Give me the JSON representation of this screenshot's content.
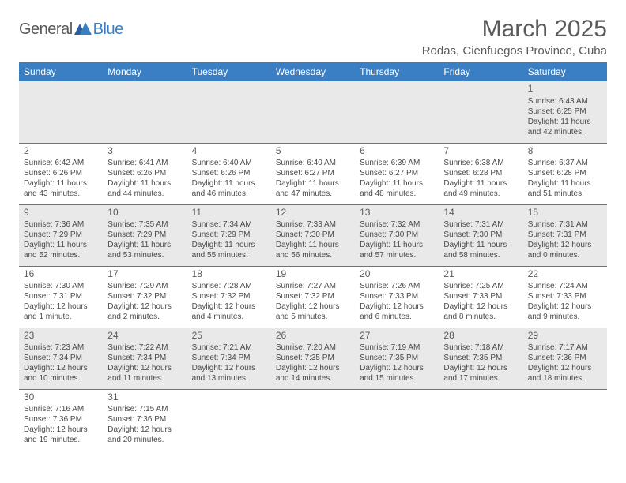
{
  "logo": {
    "text1": "General",
    "text2": "Blue"
  },
  "title": "March 2025",
  "location": "Rodas, Cienfuegos Province, Cuba",
  "headers": [
    "Sunday",
    "Monday",
    "Tuesday",
    "Wednesday",
    "Thursday",
    "Friday",
    "Saturday"
  ],
  "colors": {
    "header_bg": "#3a7fc4",
    "header_text": "#ffffff",
    "row_shade": "#e9e9e9",
    "text": "#4a4a4a",
    "border": "#3a7fc4",
    "logo_blue": "#3a7fc4"
  },
  "weeks": [
    [
      null,
      null,
      null,
      null,
      null,
      null,
      {
        "n": "1",
        "sr": "Sunrise: 6:43 AM",
        "ss": "Sunset: 6:25 PM",
        "d1": "Daylight: 11 hours",
        "d2": "and 42 minutes."
      }
    ],
    [
      {
        "n": "2",
        "sr": "Sunrise: 6:42 AM",
        "ss": "Sunset: 6:26 PM",
        "d1": "Daylight: 11 hours",
        "d2": "and 43 minutes."
      },
      {
        "n": "3",
        "sr": "Sunrise: 6:41 AM",
        "ss": "Sunset: 6:26 PM",
        "d1": "Daylight: 11 hours",
        "d2": "and 44 minutes."
      },
      {
        "n": "4",
        "sr": "Sunrise: 6:40 AM",
        "ss": "Sunset: 6:26 PM",
        "d1": "Daylight: 11 hours",
        "d2": "and 46 minutes."
      },
      {
        "n": "5",
        "sr": "Sunrise: 6:40 AM",
        "ss": "Sunset: 6:27 PM",
        "d1": "Daylight: 11 hours",
        "d2": "and 47 minutes."
      },
      {
        "n": "6",
        "sr": "Sunrise: 6:39 AM",
        "ss": "Sunset: 6:27 PM",
        "d1": "Daylight: 11 hours",
        "d2": "and 48 minutes."
      },
      {
        "n": "7",
        "sr": "Sunrise: 6:38 AM",
        "ss": "Sunset: 6:28 PM",
        "d1": "Daylight: 11 hours",
        "d2": "and 49 minutes."
      },
      {
        "n": "8",
        "sr": "Sunrise: 6:37 AM",
        "ss": "Sunset: 6:28 PM",
        "d1": "Daylight: 11 hours",
        "d2": "and 51 minutes."
      }
    ],
    [
      {
        "n": "9",
        "sr": "Sunrise: 7:36 AM",
        "ss": "Sunset: 7:29 PM",
        "d1": "Daylight: 11 hours",
        "d2": "and 52 minutes."
      },
      {
        "n": "10",
        "sr": "Sunrise: 7:35 AM",
        "ss": "Sunset: 7:29 PM",
        "d1": "Daylight: 11 hours",
        "d2": "and 53 minutes."
      },
      {
        "n": "11",
        "sr": "Sunrise: 7:34 AM",
        "ss": "Sunset: 7:29 PM",
        "d1": "Daylight: 11 hours",
        "d2": "and 55 minutes."
      },
      {
        "n": "12",
        "sr": "Sunrise: 7:33 AM",
        "ss": "Sunset: 7:30 PM",
        "d1": "Daylight: 11 hours",
        "d2": "and 56 minutes."
      },
      {
        "n": "13",
        "sr": "Sunrise: 7:32 AM",
        "ss": "Sunset: 7:30 PM",
        "d1": "Daylight: 11 hours",
        "d2": "and 57 minutes."
      },
      {
        "n": "14",
        "sr": "Sunrise: 7:31 AM",
        "ss": "Sunset: 7:30 PM",
        "d1": "Daylight: 11 hours",
        "d2": "and 58 minutes."
      },
      {
        "n": "15",
        "sr": "Sunrise: 7:31 AM",
        "ss": "Sunset: 7:31 PM",
        "d1": "Daylight: 12 hours",
        "d2": "and 0 minutes."
      }
    ],
    [
      {
        "n": "16",
        "sr": "Sunrise: 7:30 AM",
        "ss": "Sunset: 7:31 PM",
        "d1": "Daylight: 12 hours",
        "d2": "and 1 minute."
      },
      {
        "n": "17",
        "sr": "Sunrise: 7:29 AM",
        "ss": "Sunset: 7:32 PM",
        "d1": "Daylight: 12 hours",
        "d2": "and 2 minutes."
      },
      {
        "n": "18",
        "sr": "Sunrise: 7:28 AM",
        "ss": "Sunset: 7:32 PM",
        "d1": "Daylight: 12 hours",
        "d2": "and 4 minutes."
      },
      {
        "n": "19",
        "sr": "Sunrise: 7:27 AM",
        "ss": "Sunset: 7:32 PM",
        "d1": "Daylight: 12 hours",
        "d2": "and 5 minutes."
      },
      {
        "n": "20",
        "sr": "Sunrise: 7:26 AM",
        "ss": "Sunset: 7:33 PM",
        "d1": "Daylight: 12 hours",
        "d2": "and 6 minutes."
      },
      {
        "n": "21",
        "sr": "Sunrise: 7:25 AM",
        "ss": "Sunset: 7:33 PM",
        "d1": "Daylight: 12 hours",
        "d2": "and 8 minutes."
      },
      {
        "n": "22",
        "sr": "Sunrise: 7:24 AM",
        "ss": "Sunset: 7:33 PM",
        "d1": "Daylight: 12 hours",
        "d2": "and 9 minutes."
      }
    ],
    [
      {
        "n": "23",
        "sr": "Sunrise: 7:23 AM",
        "ss": "Sunset: 7:34 PM",
        "d1": "Daylight: 12 hours",
        "d2": "and 10 minutes."
      },
      {
        "n": "24",
        "sr": "Sunrise: 7:22 AM",
        "ss": "Sunset: 7:34 PM",
        "d1": "Daylight: 12 hours",
        "d2": "and 11 minutes."
      },
      {
        "n": "25",
        "sr": "Sunrise: 7:21 AM",
        "ss": "Sunset: 7:34 PM",
        "d1": "Daylight: 12 hours",
        "d2": "and 13 minutes."
      },
      {
        "n": "26",
        "sr": "Sunrise: 7:20 AM",
        "ss": "Sunset: 7:35 PM",
        "d1": "Daylight: 12 hours",
        "d2": "and 14 minutes."
      },
      {
        "n": "27",
        "sr": "Sunrise: 7:19 AM",
        "ss": "Sunset: 7:35 PM",
        "d1": "Daylight: 12 hours",
        "d2": "and 15 minutes."
      },
      {
        "n": "28",
        "sr": "Sunrise: 7:18 AM",
        "ss": "Sunset: 7:35 PM",
        "d1": "Daylight: 12 hours",
        "d2": "and 17 minutes."
      },
      {
        "n": "29",
        "sr": "Sunrise: 7:17 AM",
        "ss": "Sunset: 7:36 PM",
        "d1": "Daylight: 12 hours",
        "d2": "and 18 minutes."
      }
    ],
    [
      {
        "n": "30",
        "sr": "Sunrise: 7:16 AM",
        "ss": "Sunset: 7:36 PM",
        "d1": "Daylight: 12 hours",
        "d2": "and 19 minutes."
      },
      {
        "n": "31",
        "sr": "Sunrise: 7:15 AM",
        "ss": "Sunset: 7:36 PM",
        "d1": "Daylight: 12 hours",
        "d2": "and 20 minutes."
      },
      null,
      null,
      null,
      null,
      null
    ]
  ]
}
